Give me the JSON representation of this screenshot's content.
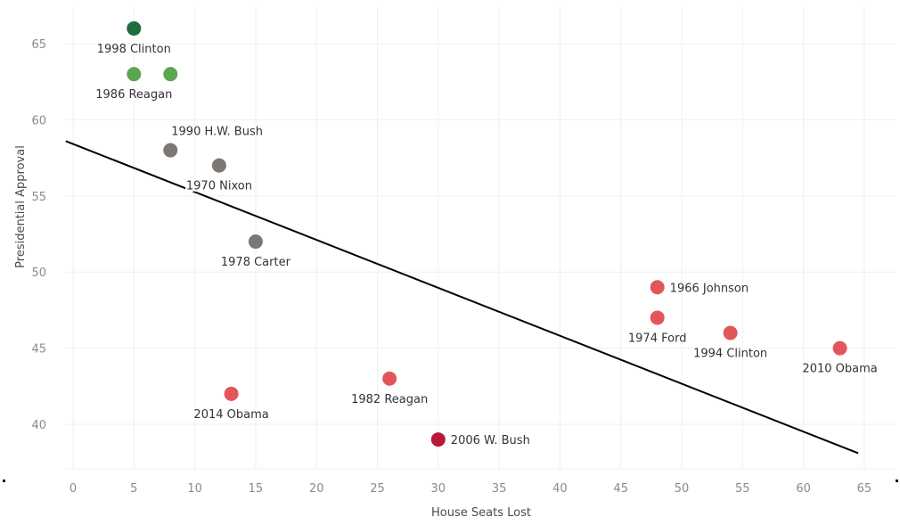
{
  "chart_data": {
    "type": "scatter",
    "title": "",
    "xlabel": "House Seats Lost",
    "ylabel": "Presidential Approval",
    "xlim": [
      -0.6,
      67.5
    ],
    "ylim": [
      37,
      68
    ],
    "xticks": [
      "0",
      "5",
      "10",
      "15",
      "20",
      "25",
      "30",
      "35",
      "40",
      "45",
      "50",
      "55",
      "60",
      "65"
    ],
    "yticks": [
      "40",
      "45",
      "50",
      "55",
      "60",
      "65"
    ],
    "grid": true,
    "points": [
      {
        "label": "1998 Clinton",
        "x": 5,
        "y": 66,
        "color": "#1f6b3c",
        "pos": "below"
      },
      {
        "label": "1986 Reagan",
        "x": 5,
        "y": 63,
        "color": "#5ba650",
        "pos": "below"
      },
      {
        "label": "",
        "x": 8,
        "y": 63,
        "color": "#5ba650",
        "pos": "below"
      },
      {
        "label": "1990 H.W. Bush",
        "x": 8,
        "y": 58,
        "color": "#7e7670",
        "pos": "above-right"
      },
      {
        "label": "1970 Nixon",
        "x": 12,
        "y": 57,
        "color": "#7e7670",
        "pos": "below"
      },
      {
        "label": "1978 Carter",
        "x": 15,
        "y": 52,
        "color": "#7e7670",
        "pos": "below"
      },
      {
        "label": "1966 Johnson",
        "x": 48,
        "y": 49,
        "color": "#e15759",
        "pos": "right"
      },
      {
        "label": "1974 Ford",
        "x": 48,
        "y": 47,
        "color": "#e15759",
        "pos": "below"
      },
      {
        "label": "1994 Clinton",
        "x": 54,
        "y": 46,
        "color": "#e15759",
        "pos": "below"
      },
      {
        "label": "2010 Obama",
        "x": 63,
        "y": 45,
        "color": "#e15759",
        "pos": "below"
      },
      {
        "label": "1982 Reagan",
        "x": 26,
        "y": 43,
        "color": "#e15759",
        "pos": "below"
      },
      {
        "label": "2014 Obama",
        "x": 13,
        "y": 42,
        "color": "#e15759",
        "pos": "below"
      },
      {
        "label": "2006 W. Bush",
        "x": 30,
        "y": 39,
        "color": "#b8173b",
        "pos": "right"
      }
    ],
    "trendline": {
      "x": [
        -0.6,
        64.5
      ],
      "y": [
        58.6,
        38.1
      ]
    }
  }
}
